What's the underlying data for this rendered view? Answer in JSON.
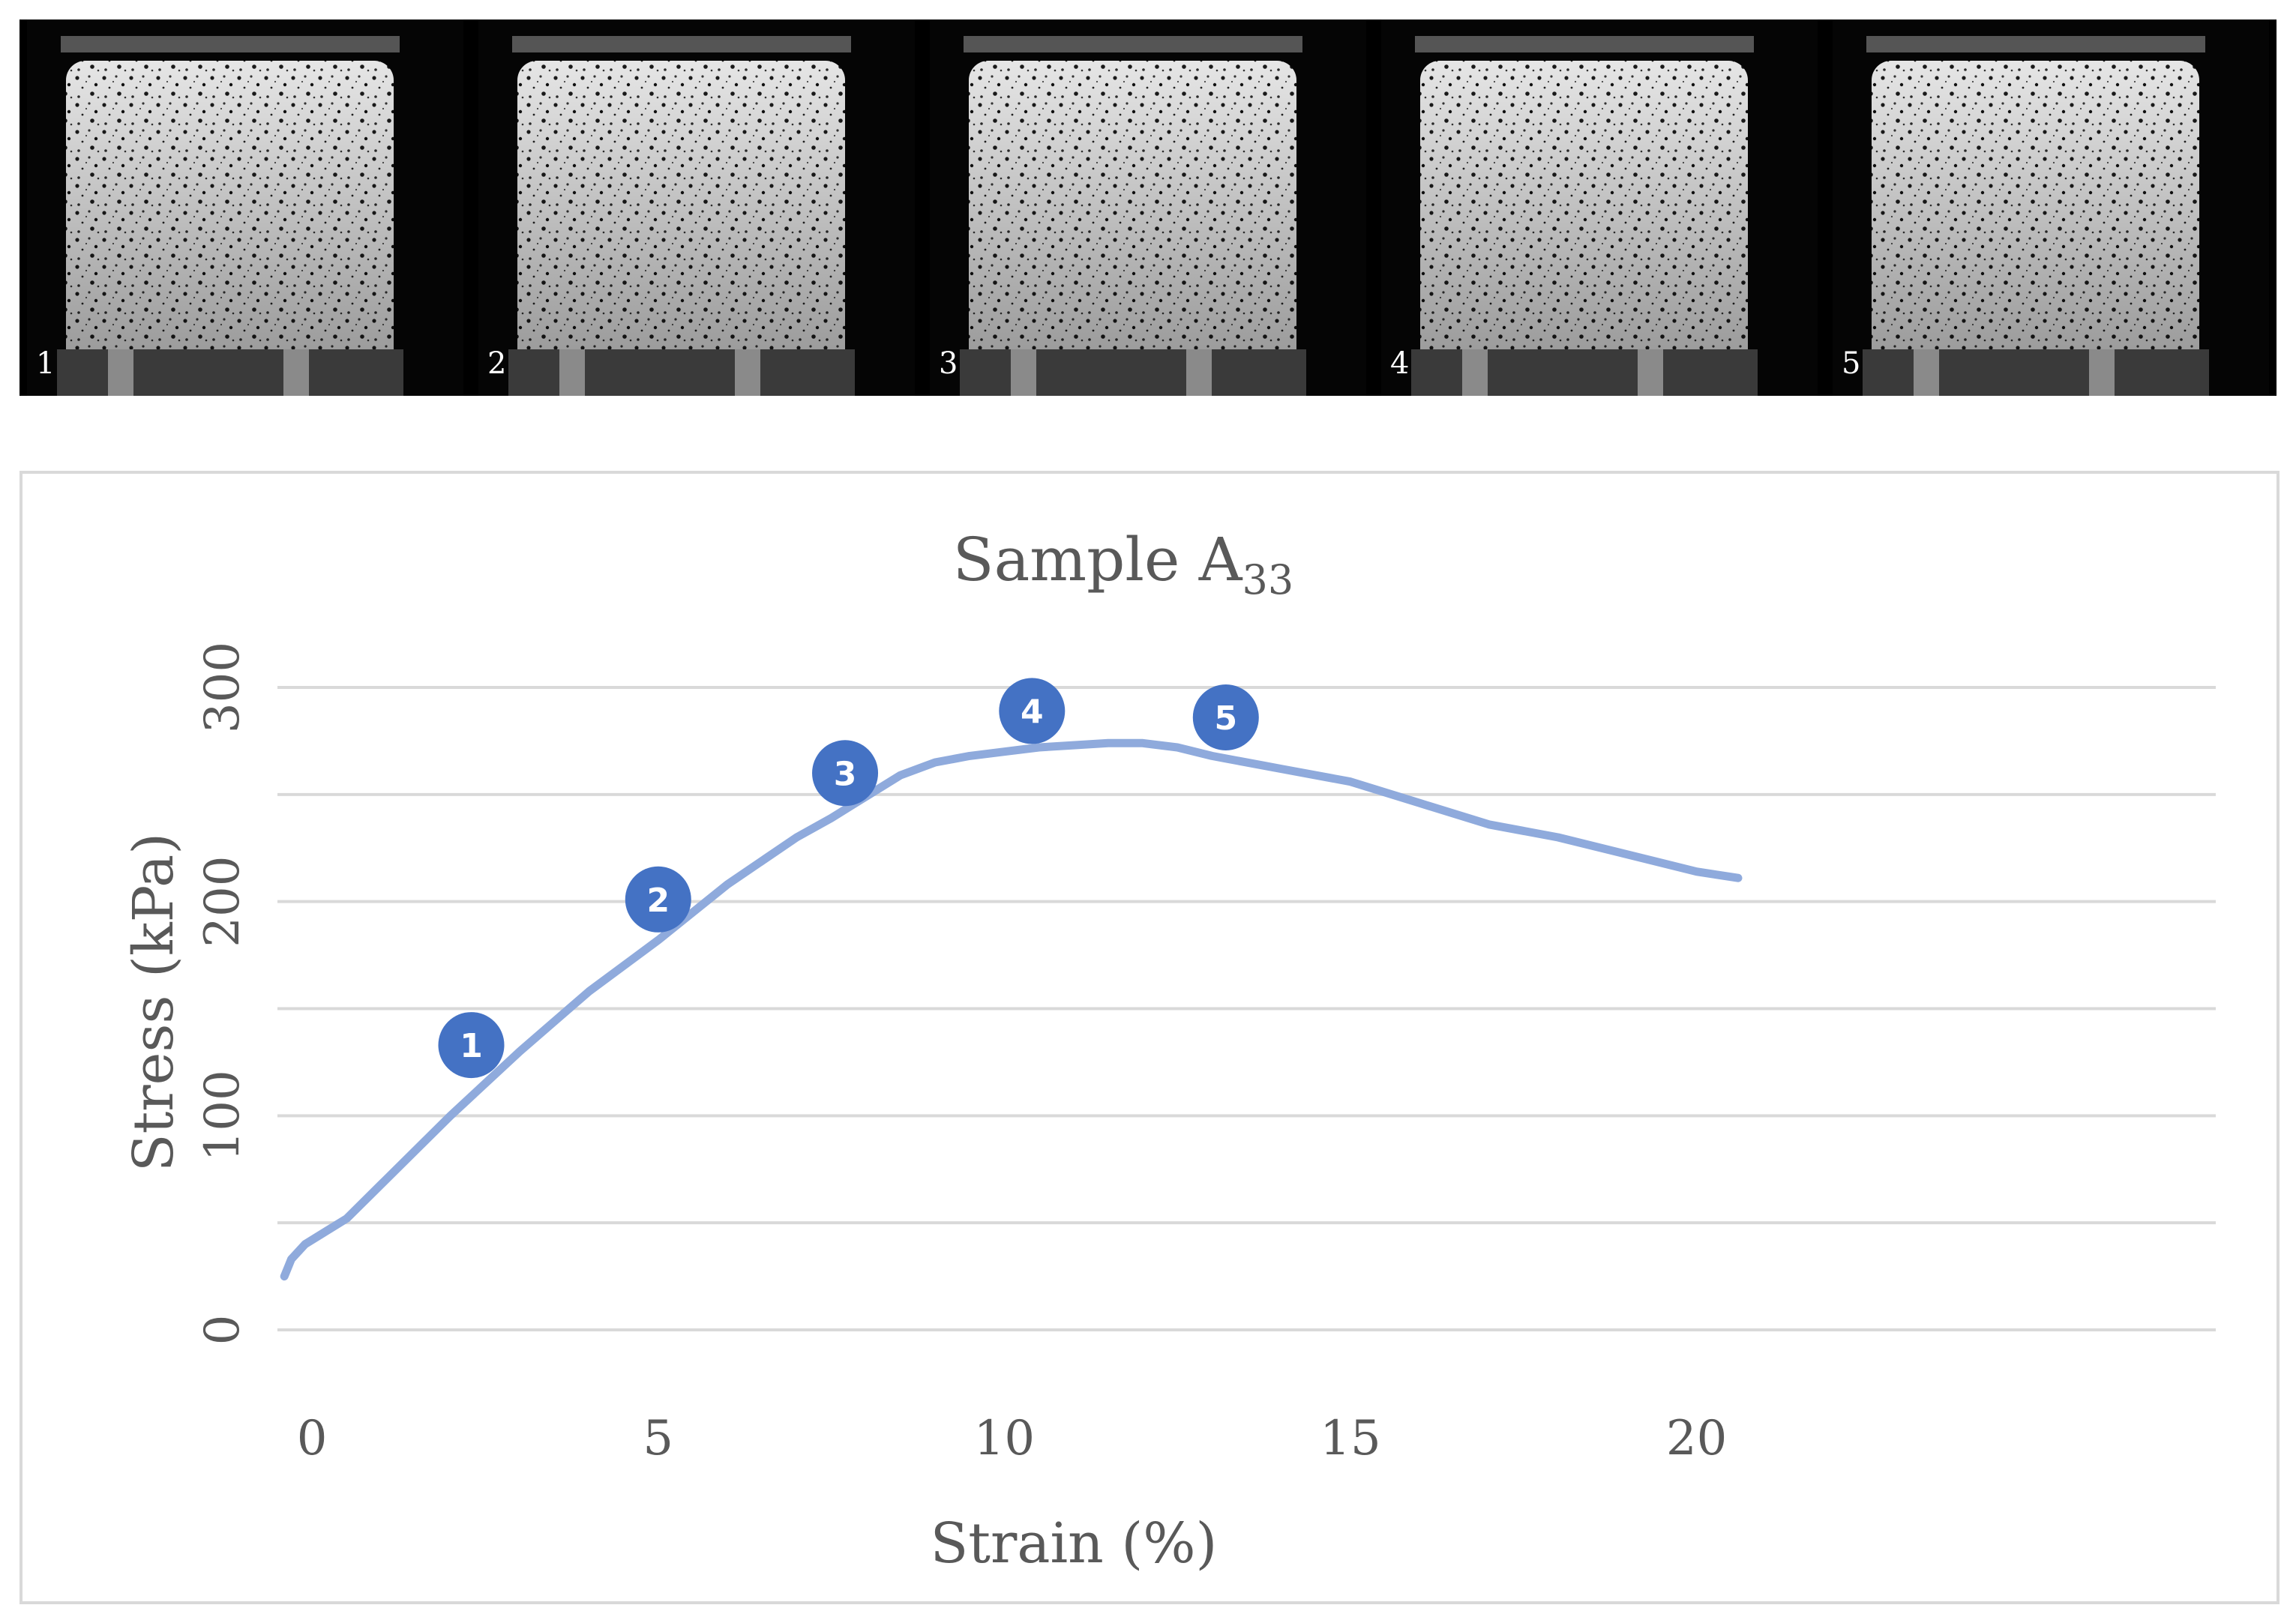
{
  "photos": {
    "frames": [
      {
        "label": "1"
      },
      {
        "label": "2"
      },
      {
        "label": "3"
      },
      {
        "label": "4"
      },
      {
        "label": "5"
      }
    ]
  },
  "chart_data": {
    "type": "line",
    "title": "Sample A",
    "title_subscript": "33",
    "xlabel": "Strain (%)",
    "ylabel": "Stress (kPa)",
    "xlim": [
      -0.5,
      27.5
    ],
    "ylim": [
      0,
      300
    ],
    "xticks": [
      0,
      5,
      10,
      15,
      20
    ],
    "yticks": [
      0,
      100,
      200,
      300
    ],
    "y_gridlines": [
      0,
      50,
      100,
      150,
      200,
      250,
      300
    ],
    "grid": true,
    "line_color": "#8faadc",
    "marker_color": "#4472c4",
    "series": [
      {
        "name": "Sample A33",
        "x": [
          -0.4,
          -0.3,
          -0.1,
          0.2,
          0.5,
          1,
          2,
          3,
          4,
          5,
          6,
          7,
          7.5,
          8,
          8.5,
          9,
          9.5,
          10,
          10.5,
          11,
          11.5,
          12,
          12.5,
          13,
          14,
          15,
          16,
          17,
          18,
          19,
          20,
          20.6
        ],
        "y": [
          25,
          33,
          40,
          46,
          52,
          68,
          100,
          130,
          158,
          182,
          208,
          230,
          239,
          249,
          259,
          265,
          268,
          270,
          272,
          273,
          274,
          274,
          272,
          268,
          262,
          256,
          246,
          236,
          230,
          222,
          214,
          211
        ]
      }
    ],
    "annotations": [
      {
        "label": "1",
        "x": 2.3,
        "y": 133
      },
      {
        "label": "2",
        "x": 5.0,
        "y": 201
      },
      {
        "label": "3",
        "x": 7.7,
        "y": 260
      },
      {
        "label": "4",
        "x": 10.4,
        "y": 289
      },
      {
        "label": "5",
        "x": 13.2,
        "y": 286
      }
    ]
  }
}
